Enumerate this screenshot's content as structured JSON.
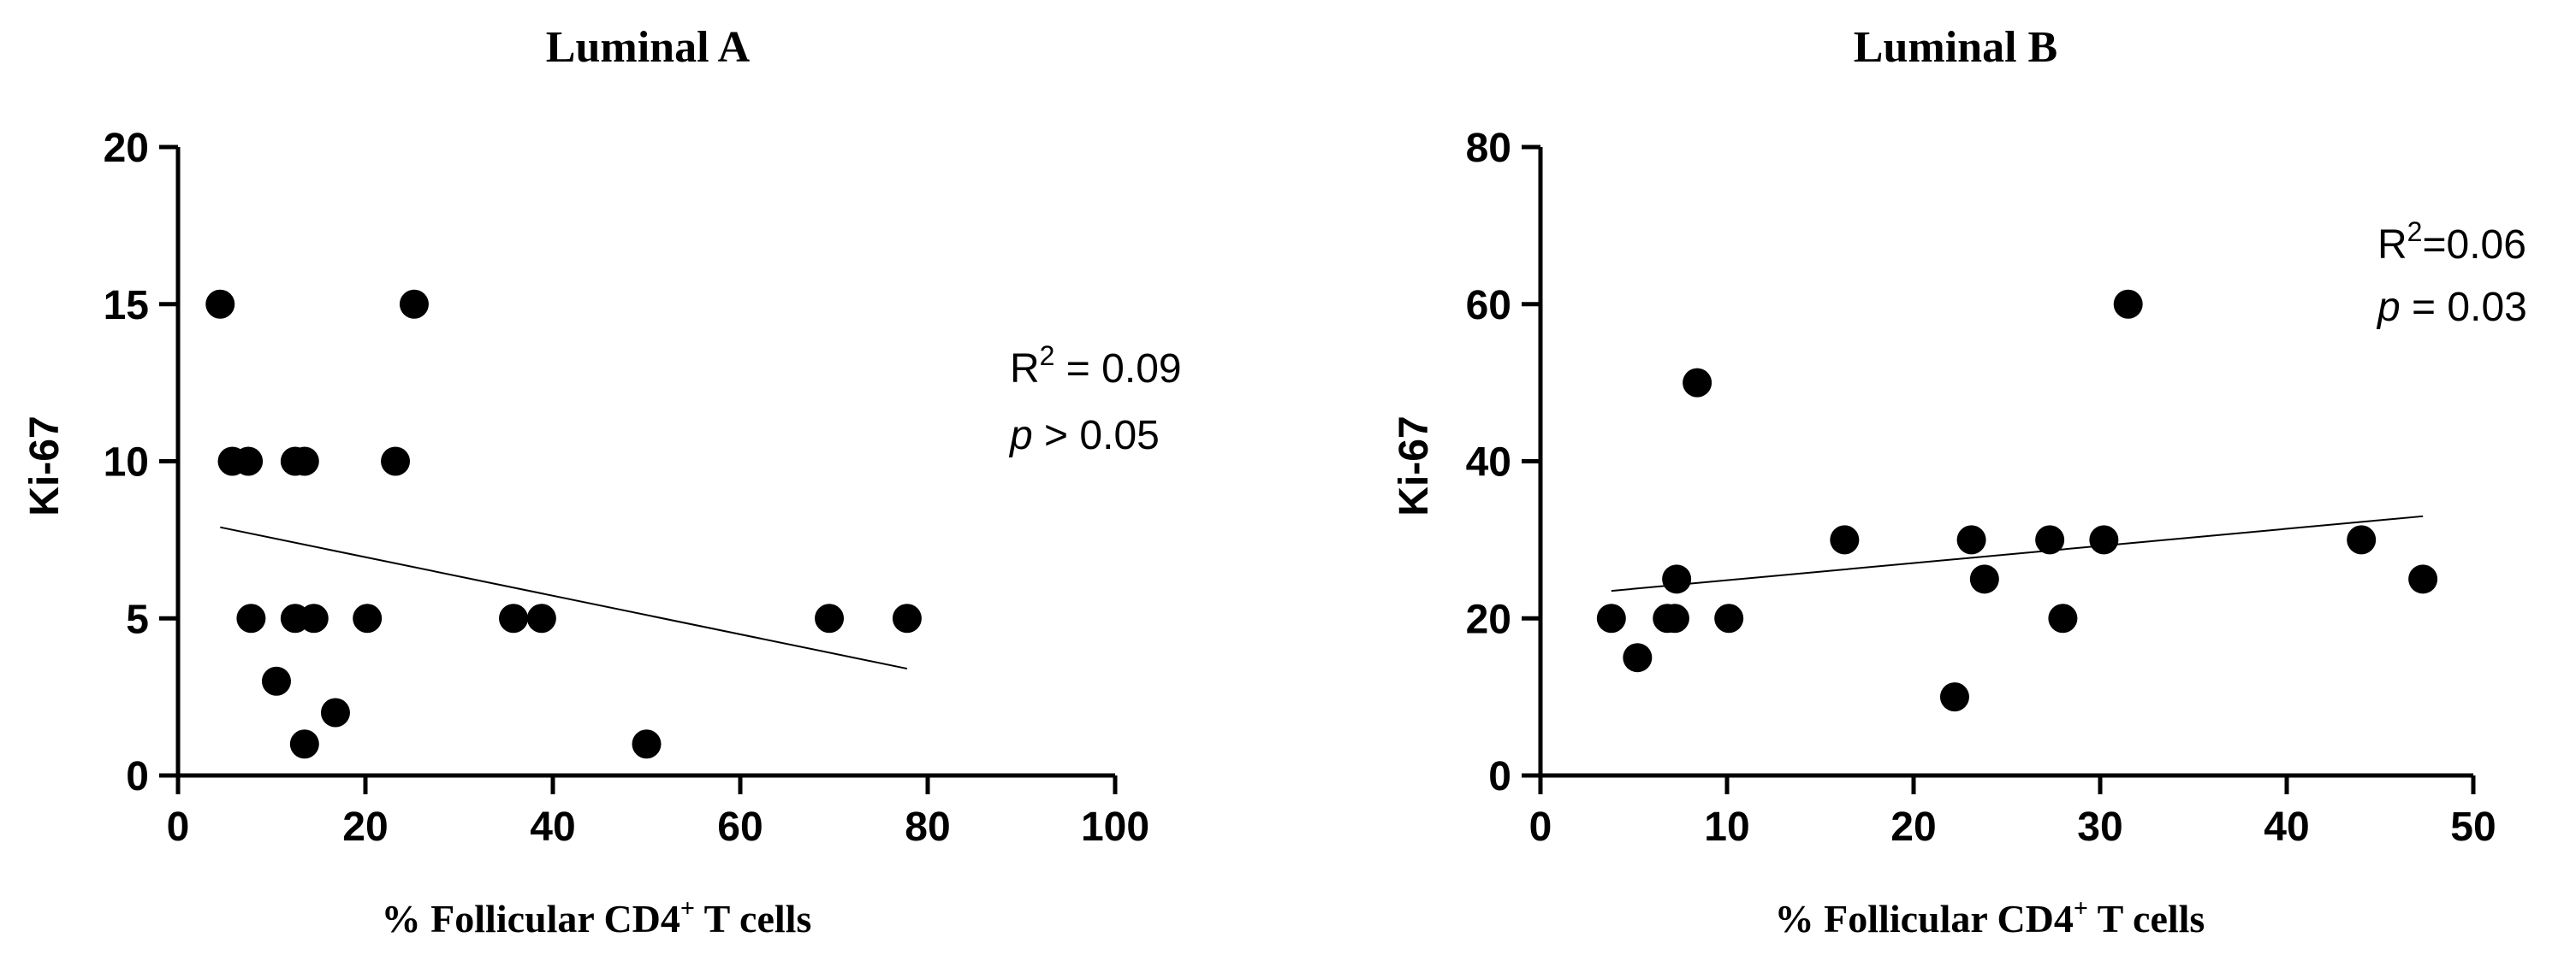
{
  "colors": {
    "ink": "#000000",
    "background": "#ffffff"
  },
  "chart_data": [
    {
      "type": "scatter",
      "title": "Luminal A",
      "xlabel": "% Follicular CD4+ T cells",
      "xlabel_main": "% Follicular CD4",
      "xlabel_sup": "+",
      "xlabel_tail": " T cells",
      "ylabel": "Ki-67",
      "xlim": [
        0,
        100
      ],
      "ylim": [
        0,
        20
      ],
      "xticks": [
        0,
        20,
        40,
        60,
        80,
        100
      ],
      "yticks": [
        0,
        5,
        10,
        15,
        20
      ],
      "points": [
        {
          "x": 4.5,
          "y": 15
        },
        {
          "x": 5.8,
          "y": 10
        },
        {
          "x": 7.5,
          "y": 10
        },
        {
          "x": 7.8,
          "y": 5
        },
        {
          "x": 10.5,
          "y": 3
        },
        {
          "x": 12.5,
          "y": 10
        },
        {
          "x": 12.5,
          "y": 5
        },
        {
          "x": 13.5,
          "y": 10
        },
        {
          "x": 13.5,
          "y": 1
        },
        {
          "x": 14.5,
          "y": 5
        },
        {
          "x": 16.8,
          "y": 2
        },
        {
          "x": 20.2,
          "y": 5
        },
        {
          "x": 23.2,
          "y": 10
        },
        {
          "x": 25.2,
          "y": 15
        },
        {
          "x": 35.8,
          "y": 5
        },
        {
          "x": 38.8,
          "y": 5
        },
        {
          "x": 50.0,
          "y": 1
        },
        {
          "x": 69.5,
          "y": 5
        },
        {
          "x": 77.8,
          "y": 5
        }
      ],
      "regression": {
        "x1": 4.5,
        "y1": 7.9,
        "x2": 77.8,
        "y2": 3.4
      },
      "stats_line1_label": "R",
      "stats_line1_sup": "2",
      "stats_line1_value": " = 0.09",
      "stats_line2_p": "p",
      "stats_line2_value": " > 0.05"
    },
    {
      "type": "scatter",
      "title": "Luminal B",
      "xlabel": "% Follicular CD4+ T cells",
      "xlabel_main": "% Follicular CD4",
      "xlabel_sup": "+",
      "xlabel_tail": " T cells",
      "ylabel": "Ki-67",
      "xlim": [
        0,
        50
      ],
      "ylim": [
        0,
        80
      ],
      "xticks": [
        0,
        10,
        20,
        30,
        40,
        50
      ],
      "yticks": [
        0,
        20,
        40,
        60,
        80
      ],
      "points": [
        {
          "x": 3.8,
          "y": 20
        },
        {
          "x": 5.2,
          "y": 15
        },
        {
          "x": 6.8,
          "y": 20
        },
        {
          "x": 7.2,
          "y": 20
        },
        {
          "x": 7.3,
          "y": 25
        },
        {
          "x": 8.4,
          "y": 50
        },
        {
          "x": 10.1,
          "y": 20
        },
        {
          "x": 16.3,
          "y": 30
        },
        {
          "x": 22.2,
          "y": 10
        },
        {
          "x": 23.1,
          "y": 30
        },
        {
          "x": 23.8,
          "y": 25
        },
        {
          "x": 27.3,
          "y": 30
        },
        {
          "x": 28.0,
          "y": 20
        },
        {
          "x": 30.2,
          "y": 30
        },
        {
          "x": 31.5,
          "y": 60
        },
        {
          "x": 44.0,
          "y": 30
        },
        {
          "x": 47.3,
          "y": 25
        }
      ],
      "regression": {
        "x1": 3.8,
        "y1": 23.5,
        "x2": 47.3,
        "y2": 33.0
      },
      "stats_line1_label": "R",
      "stats_line1_sup": "2",
      "stats_line1_value": "=0.06",
      "stats_line2_p": "p",
      "stats_line2_value": " = 0.03"
    }
  ]
}
